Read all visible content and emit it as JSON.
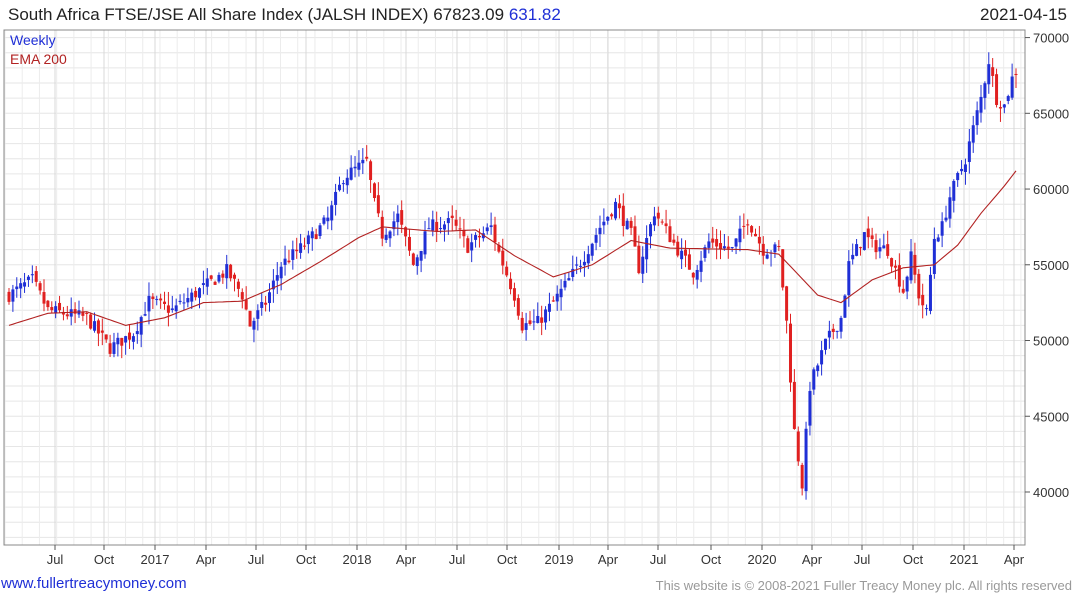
{
  "header": {
    "title": "South Africa FTSE/JSE All Share Index (JALSH INDEX)",
    "last": "67823.09",
    "change": "631.82",
    "date": "2021-04-15"
  },
  "footer": {
    "site": "www.fullertreacymoney.com",
    "copyright": "This website is © 2008-2021 Fuller Treacy Money plc. All rights reserved"
  },
  "colors": {
    "up": "#1f2fd6",
    "down": "#e02020",
    "ema": "#b22222",
    "grid": "#dcdcdc",
    "frame": "#888888"
  },
  "chart_data": {
    "type": "candlestick",
    "frequency_label": "Weekly",
    "legend": [
      "EMA 200"
    ],
    "x_tick_labels": [
      "Jul",
      "Oct",
      "2017",
      "Apr",
      "Jul",
      "Oct",
      "2018",
      "Apr",
      "Jul",
      "Oct",
      "2019",
      "Apr",
      "Jul",
      "Oct",
      "2020",
      "Apr",
      "Jul",
      "Oct",
      "2021",
      "Apr"
    ],
    "y_ticks": [
      40000,
      45000,
      50000,
      55000,
      60000,
      65000,
      70000
    ],
    "ylim": [
      36500,
      70500
    ],
    "weeks_total": 260,
    "close_anchors": [
      [
        0,
        53000
      ],
      [
        6,
        54000
      ],
      [
        10,
        52000
      ],
      [
        20,
        51500
      ],
      [
        26,
        49500
      ],
      [
        32,
        50500
      ],
      [
        36,
        52600
      ],
      [
        42,
        52000
      ],
      [
        50,
        53500
      ],
      [
        56,
        54600
      ],
      [
        60,
        53000
      ],
      [
        62,
        51000
      ],
      [
        66,
        52500
      ],
      [
        70,
        55000
      ],
      [
        76,
        56300
      ],
      [
        82,
        58000
      ],
      [
        86,
        60800
      ],
      [
        92,
        61800
      ],
      [
        94,
        59000
      ],
      [
        96,
        57000
      ],
      [
        100,
        58200
      ],
      [
        104,
        55000
      ],
      [
        108,
        57500
      ],
      [
        114,
        57800
      ],
      [
        118,
        56200
      ],
      [
        124,
        57500
      ],
      [
        126,
        55800
      ],
      [
        130,
        53000
      ],
      [
        132,
        51000
      ],
      [
        136,
        51200
      ],
      [
        140,
        52500
      ],
      [
        144,
        54000
      ],
      [
        148,
        55600
      ],
      [
        152,
        57500
      ],
      [
        156,
        59000
      ],
      [
        160,
        57000
      ],
      [
        162,
        54800
      ],
      [
        166,
        58500
      ],
      [
        172,
        56000
      ],
      [
        176,
        54500
      ],
      [
        180,
        56500
      ],
      [
        186,
        56000
      ],
      [
        190,
        58000
      ],
      [
        194,
        56000
      ],
      [
        198,
        56000
      ],
      [
        200,
        51200
      ],
      [
        202,
        44000
      ],
      [
        204,
        40500
      ],
      [
        206,
        47000
      ],
      [
        210,
        49800
      ],
      [
        214,
        51500
      ],
      [
        216,
        55000
      ],
      [
        220,
        57000
      ],
      [
        222,
        56300
      ],
      [
        226,
        56000
      ],
      [
        230,
        53300
      ],
      [
        232,
        55500
      ],
      [
        234,
        53000
      ],
      [
        236,
        51800
      ],
      [
        238,
        56800
      ],
      [
        240,
        57500
      ],
      [
        242,
        59500
      ],
      [
        246,
        62000
      ],
      [
        248,
        64000
      ],
      [
        250,
        66000
      ],
      [
        252,
        68500
      ],
      [
        254,
        66000
      ],
      [
        256,
        65500
      ],
      [
        258,
        67300
      ],
      [
        259,
        67800
      ]
    ],
    "ema_anchors": [
      [
        0,
        51000
      ],
      [
        10,
        51800
      ],
      [
        20,
        51900
      ],
      [
        30,
        51000
      ],
      [
        40,
        51500
      ],
      [
        50,
        52500
      ],
      [
        60,
        52600
      ],
      [
        70,
        53700
      ],
      [
        80,
        55200
      ],
      [
        90,
        56800
      ],
      [
        96,
        57500
      ],
      [
        110,
        57200
      ],
      [
        120,
        57300
      ],
      [
        130,
        55600
      ],
      [
        140,
        54200
      ],
      [
        150,
        55000
      ],
      [
        160,
        56600
      ],
      [
        170,
        56100
      ],
      [
        190,
        56000
      ],
      [
        198,
        55700
      ],
      [
        208,
        53000
      ],
      [
        214,
        52500
      ],
      [
        222,
        54000
      ],
      [
        230,
        54800
      ],
      [
        238,
        55000
      ],
      [
        244,
        56300
      ],
      [
        250,
        58400
      ],
      [
        256,
        60200
      ],
      [
        259,
        61200
      ]
    ]
  }
}
